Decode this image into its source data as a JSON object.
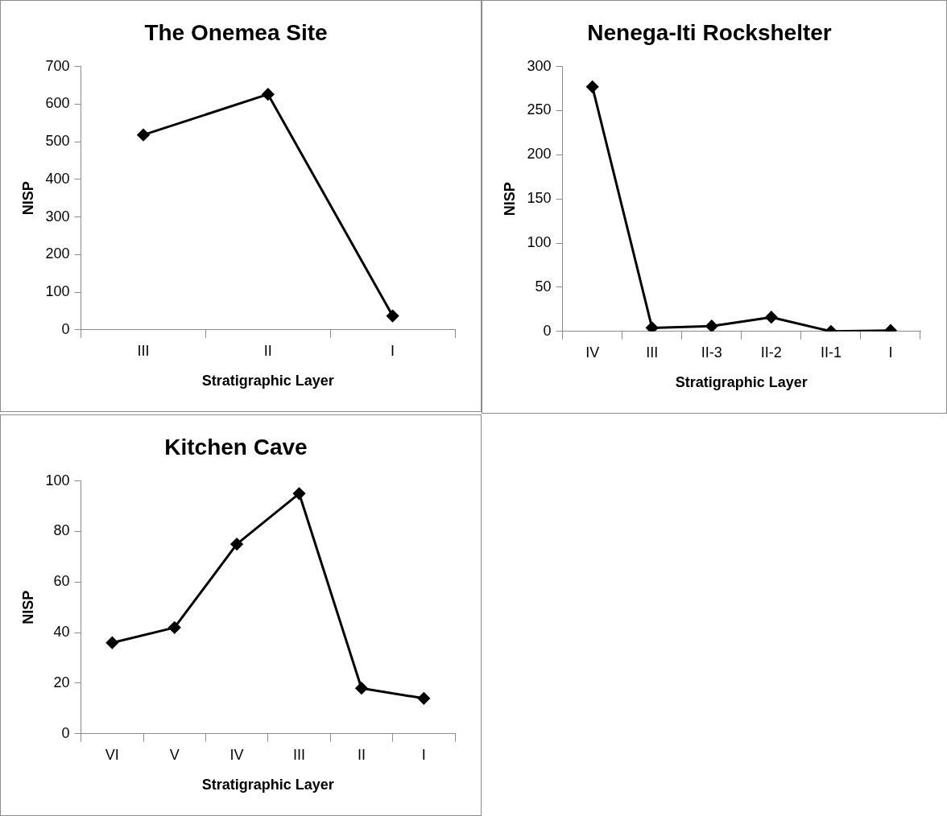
{
  "chart_data": [
    {
      "type": "line",
      "title": "The Onemea Site",
      "xlabel": "Stratigraphic Layer",
      "ylabel": "NISP",
      "categories": [
        "III",
        "II",
        "I"
      ],
      "series": [
        {
          "color": "#000000",
          "values": [
            518,
            626,
            37
          ]
        }
      ],
      "ylim": [
        0,
        700
      ],
      "yticks": [
        0,
        100,
        200,
        300,
        400,
        500,
        600,
        700
      ],
      "grid": false,
      "legend": false,
      "marker": "diamond",
      "line_style": "solid"
    },
    {
      "type": "line",
      "title": "Nenega-Iti Rockshelter",
      "xlabel": "Stratigraphic Layer",
      "ylabel": "NISP",
      "categories": [
        "IV",
        "III",
        "II-3",
        "II-2",
        "II-1",
        "I"
      ],
      "series": [
        {
          "color": "#000000",
          "values": [
            277,
            4,
            6,
            16,
            0,
            1
          ]
        }
      ],
      "ylim": [
        0,
        300
      ],
      "yticks": [
        0,
        50,
        100,
        150,
        200,
        250,
        300
      ],
      "grid": false,
      "legend": false,
      "marker": "diamond",
      "line_style": "solid"
    },
    {
      "type": "line",
      "title": "Kitchen Cave",
      "xlabel": "Stratigraphic Layer",
      "ylabel": "NISP",
      "categories": [
        "VI",
        "V",
        "IV",
        "III",
        "II",
        "I"
      ],
      "series": [
        {
          "color": "#000000",
          "values": [
            36,
            42,
            75,
            95,
            18,
            14
          ]
        }
      ],
      "ylim": [
        0,
        100
      ],
      "yticks": [
        0,
        20,
        40,
        60,
        80,
        100
      ],
      "grid": false,
      "legend": false,
      "marker": "diamond",
      "line_style": "solid"
    }
  ]
}
